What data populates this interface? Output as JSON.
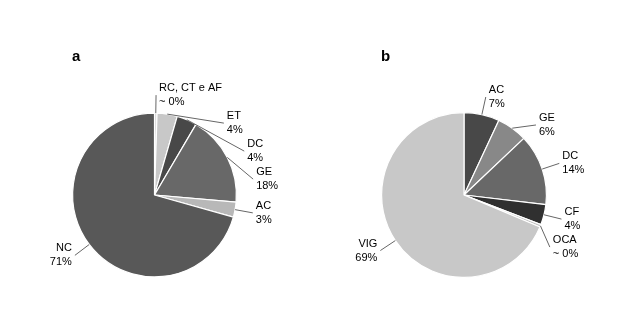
{
  "chart_data": [
    {
      "type": "pie",
      "title": "a",
      "categories": [
        "RC, CT e AF",
        "ET",
        "DC",
        "GE",
        "AC",
        "NC"
      ],
      "values": [
        0.5,
        4,
        4,
        18,
        3,
        71
      ],
      "value_labels": [
        "~ 0%",
        "4%",
        "4%",
        "18%",
        "3%",
        "71%"
      ],
      "colors": [
        "#d8d8d8",
        "#c8c8c8",
        "#484848",
        "#686868",
        "#b8b8b8",
        "#585858"
      ],
      "data_labels": true
    },
    {
      "type": "pie",
      "title": "b",
      "categories": [
        "AC",
        "GE",
        "DC",
        "CF",
        "OCA",
        "VIG"
      ],
      "values": [
        7,
        6,
        14,
        4,
        0.5,
        69
      ],
      "value_labels": [
        "7%",
        "6%",
        "14%",
        "4%",
        "~ 0%",
        "69%"
      ],
      "colors": [
        "#484848",
        "#888888",
        "#686868",
        "#303030",
        "#c0c0c0",
        "#c8c8c8"
      ],
      "data_labels": true
    }
  ]
}
